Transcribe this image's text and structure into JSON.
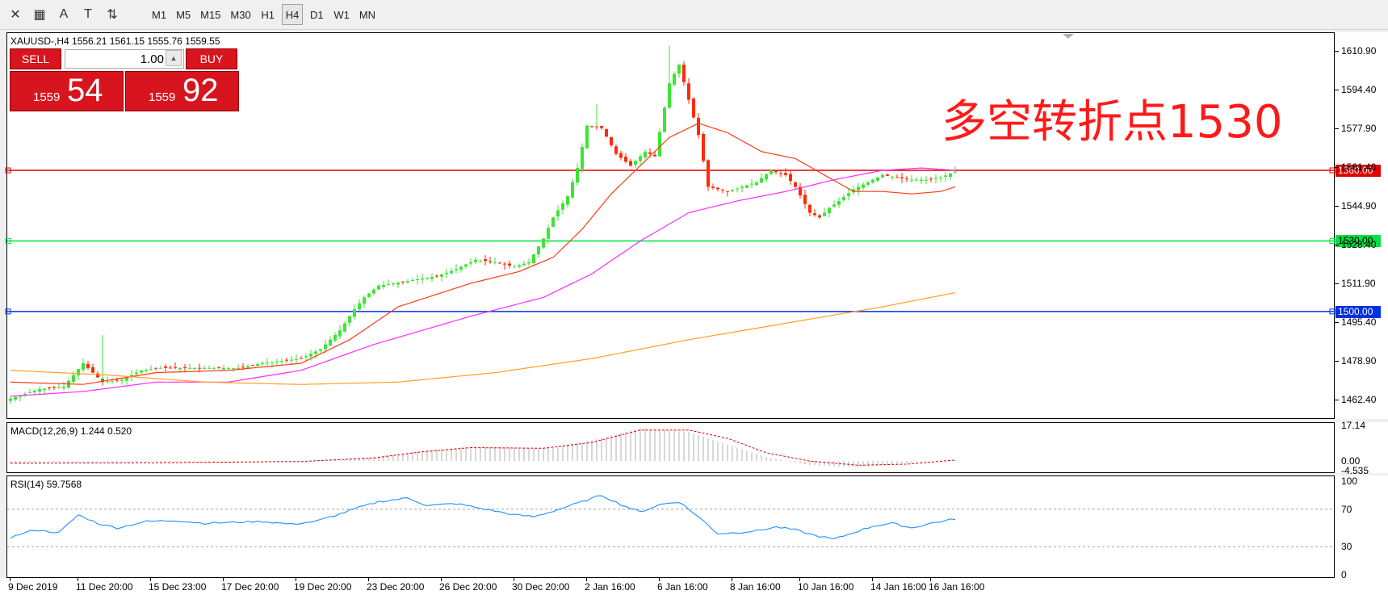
{
  "toolbar": {
    "tools": [
      {
        "name": "crosshair-tool-icon",
        "glyph": "✕"
      },
      {
        "name": "period-separator-icon",
        "glyph": "▦"
      },
      {
        "name": "text-tool-icon",
        "glyph": "A"
      },
      {
        "name": "text-label-tool-icon",
        "glyph": "T"
      },
      {
        "name": "arrow-tool-icon",
        "glyph": "⇅"
      }
    ],
    "timeframes": [
      "M1",
      "M5",
      "M15",
      "M30",
      "H1",
      "H4",
      "D1",
      "W1",
      "MN"
    ],
    "active_timeframe": "H4"
  },
  "symbol_header": "XAUUSD-,H4  1556.21 1561.15 1555.76 1559.55",
  "trade_panel": {
    "sell_label": "SELL",
    "buy_label": "BUY",
    "lot_value": "1.00",
    "sell_small": "1559",
    "sell_big": "54",
    "buy_small": "1559",
    "buy_big": "92"
  },
  "annotation": "多空转折点1530",
  "macd_label": "MACD(12,26,9) 1.244 0.520",
  "rsi_label": "RSI(14) 59.7568",
  "colors": {
    "bull": "#3ce633",
    "bear": "#ff2a0a",
    "ma_fast": "#ff3a1a",
    "ma_mid": "#ff2aff",
    "ma_slow": "#ffa020",
    "line_1560": "#e00000",
    "line_1530": "#00e040",
    "line_1500": "#0030e0",
    "rsi": "#1e90ff"
  },
  "chart_data": [
    {
      "type": "candlestick",
      "title": "XAUUSD-,H4",
      "ylim": [
        1455,
        1618
      ],
      "y_ticks": [
        "1610.90",
        "1594.40",
        "1577.90",
        "1561.40",
        "1544.90",
        "1528.40",
        "1511.90",
        "1495.40",
        "1478.90",
        "1462.40"
      ],
      "x_ticks": [
        "9 Dec 2019",
        "11 Dec 20:00",
        "15 Dec 23:00",
        "17 Dec 20:00",
        "19 Dec 20:00",
        "23 Dec 20:00",
        "26 Dec 20:00",
        "30 Dec 20:00",
        "2 Jan 16:00",
        "6 Jan 16:00",
        "8 Jan 16:00",
        "10 Jan 16:00",
        "14 Jan 16:00",
        "16 Jan 16:00"
      ],
      "horizontal_lines": [
        {
          "value": 1560.0,
          "label": "1560.00",
          "color": "#e00000"
        },
        {
          "value": 1530.0,
          "label": "1530.00",
          "color": "#00e040"
        },
        {
          "value": 1500.0,
          "label": "1500.00",
          "color": "#0030e0"
        }
      ],
      "close_anchors": [
        [
          0,
          1463
        ],
        [
          6,
          1467
        ],
        [
          11,
          1468
        ],
        [
          15,
          1478
        ],
        [
          19,
          1470
        ],
        [
          23,
          1471
        ],
        [
          27,
          1475
        ],
        [
          31,
          1476
        ],
        [
          36,
          1476
        ],
        [
          42,
          1476
        ],
        [
          47,
          1476
        ],
        [
          52,
          1478
        ],
        [
          56,
          1479
        ],
        [
          60,
          1480
        ],
        [
          64,
          1484
        ],
        [
          68,
          1492
        ],
        [
          71,
          1501
        ],
        [
          73,
          1506
        ],
        [
          76,
          1511
        ],
        [
          82,
          1513
        ],
        [
          88,
          1515
        ],
        [
          92,
          1518
        ],
        [
          96,
          1522
        ],
        [
          100,
          1521
        ],
        [
          104,
          1519
        ],
        [
          107,
          1521
        ],
        [
          110,
          1531
        ],
        [
          112,
          1540
        ],
        [
          115,
          1549
        ],
        [
          117,
          1561
        ],
        [
          119,
          1579
        ],
        [
          122,
          1578
        ],
        [
          125,
          1567
        ],
        [
          128,
          1562
        ],
        [
          131,
          1568
        ],
        [
          133,
          1566
        ],
        [
          136,
          1597
        ],
        [
          138,
          1605
        ],
        [
          140,
          1590
        ],
        [
          142,
          1575
        ],
        [
          144,
          1553
        ],
        [
          146,
          1552
        ],
        [
          148,
          1551
        ],
        [
          151,
          1553
        ],
        [
          154,
          1555
        ],
        [
          157,
          1560
        ],
        [
          160,
          1558
        ],
        [
          162,
          1553
        ],
        [
          165,
          1542
        ],
        [
          167,
          1540
        ],
        [
          169,
          1544
        ],
        [
          171,
          1547
        ],
        [
          174,
          1552
        ],
        [
          177,
          1555
        ],
        [
          180,
          1558
        ],
        [
          183,
          1557
        ],
        [
          186,
          1556
        ],
        [
          189,
          1556
        ],
        [
          192,
          1557
        ],
        [
          195,
          1559.5
        ]
      ],
      "moving_averages": [
        {
          "color": "#ff3a1a",
          "points": [
            [
              0,
              1470
            ],
            [
              15,
              1469
            ],
            [
              30,
              1474
            ],
            [
              45,
              1475
            ],
            [
              60,
              1478
            ],
            [
              70,
              1488
            ],
            [
              80,
              1502
            ],
            [
              95,
              1512
            ],
            [
              105,
              1517
            ],
            [
              112,
              1523
            ],
            [
              118,
              1535
            ],
            [
              124,
              1550
            ],
            [
              130,
              1562
            ],
            [
              136,
              1574
            ],
            [
              142,
              1580
            ],
            [
              148,
              1576
            ],
            [
              155,
              1568
            ],
            [
              162,
              1565
            ],
            [
              168,
              1558
            ],
            [
              174,
              1551
            ],
            [
              180,
              1551
            ],
            [
              186,
              1550
            ],
            [
              192,
              1551
            ],
            [
              195,
              1553
            ]
          ]
        },
        {
          "color": "#ff2aff",
          "points": [
            [
              0,
              1464
            ],
            [
              15,
              1466
            ],
            [
              30,
              1470
            ],
            [
              45,
              1470
            ],
            [
              60,
              1475
            ],
            [
              75,
              1486
            ],
            [
              95,
              1498
            ],
            [
              110,
              1506
            ],
            [
              120,
              1516
            ],
            [
              130,
              1530
            ],
            [
              140,
              1542
            ],
            [
              150,
              1547
            ],
            [
              160,
              1551
            ],
            [
              170,
              1556
            ],
            [
              180,
              1560
            ],
            [
              188,
              1561
            ],
            [
              195,
              1560
            ]
          ]
        },
        {
          "color": "#ffa020",
          "points": [
            [
              0,
              1475
            ],
            [
              20,
              1473
            ],
            [
              40,
              1470
            ],
            [
              60,
              1469
            ],
            [
              80,
              1470
            ],
            [
              100,
              1474
            ],
            [
              120,
              1480
            ],
            [
              140,
              1488
            ],
            [
              160,
              1495
            ],
            [
              180,
              1502
            ],
            [
              195,
              1508
            ]
          ]
        }
      ]
    },
    {
      "type": "bar",
      "title": "MACD(12,26,9)",
      "values_label": "1.244 0.520",
      "y_ticks": [
        "17.14",
        "0.00",
        "-4.535"
      ],
      "ylim": [
        -5,
        18
      ],
      "histogram_anchors": [
        [
          0,
          -1
        ],
        [
          30,
          -0.5
        ],
        [
          60,
          0
        ],
        [
          75,
          2
        ],
        [
          85,
          5
        ],
        [
          95,
          7
        ],
        [
          110,
          6
        ],
        [
          120,
          10
        ],
        [
          130,
          16
        ],
        [
          140,
          14
        ],
        [
          148,
          8
        ],
        [
          156,
          2
        ],
        [
          165,
          -2
        ],
        [
          175,
          -3
        ],
        [
          185,
          -1
        ],
        [
          195,
          0.5
        ]
      ],
      "signal_anchors": [
        [
          0,
          -1
        ],
        [
          30,
          -0.8
        ],
        [
          60,
          -0.2
        ],
        [
          75,
          1.5
        ],
        [
          85,
          4.5
        ],
        [
          95,
          6.5
        ],
        [
          110,
          6.2
        ],
        [
          120,
          9
        ],
        [
          130,
          15
        ],
        [
          140,
          15
        ],
        [
          148,
          11
        ],
        [
          156,
          4
        ],
        [
          165,
          0
        ],
        [
          175,
          -2
        ],
        [
          185,
          -1.5
        ],
        [
          195,
          0.5
        ]
      ]
    },
    {
      "type": "line",
      "title": "RSI(14)",
      "value_label": "59.7568",
      "ylim": [
        0,
        100
      ],
      "y_ticks": [
        "100",
        "70",
        "30",
        "0"
      ],
      "levels": [
        70,
        30
      ],
      "anchors": [
        [
          0,
          40
        ],
        [
          5,
          48
        ],
        [
          10,
          45
        ],
        [
          14,
          64
        ],
        [
          18,
          55
        ],
        [
          22,
          50
        ],
        [
          28,
          57
        ],
        [
          34,
          58
        ],
        [
          40,
          55
        ],
        [
          46,
          56
        ],
        [
          52,
          57
        ],
        [
          58,
          54
        ],
        [
          63,
          57
        ],
        [
          68,
          65
        ],
        [
          72,
          72
        ],
        [
          76,
          78
        ],
        [
          82,
          82
        ],
        [
          86,
          74
        ],
        [
          92,
          76
        ],
        [
          98,
          70
        ],
        [
          104,
          64
        ],
        [
          108,
          62
        ],
        [
          112,
          68
        ],
        [
          118,
          78
        ],
        [
          122,
          85
        ],
        [
          126,
          75
        ],
        [
          130,
          67
        ],
        [
          134,
          75
        ],
        [
          138,
          78
        ],
        [
          142,
          62
        ],
        [
          146,
          44
        ],
        [
          150,
          45
        ],
        [
          154,
          47
        ],
        [
          158,
          51
        ],
        [
          162,
          48
        ],
        [
          166,
          42
        ],
        [
          170,
          38
        ],
        [
          174,
          45
        ],
        [
          178,
          52
        ],
        [
          182,
          55
        ],
        [
          186,
          50
        ],
        [
          190,
          55
        ],
        [
          195,
          59.7568
        ]
      ]
    }
  ]
}
